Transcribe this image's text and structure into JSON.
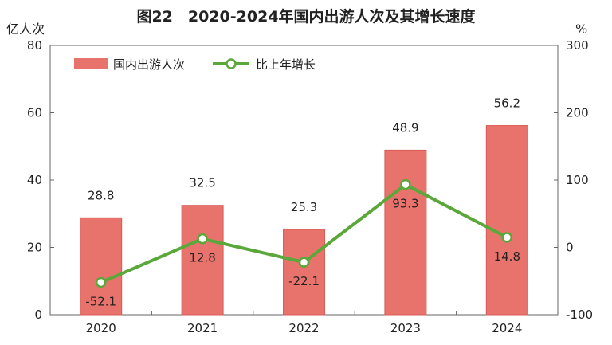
{
  "chart_data": {
    "type": "bar",
    "title": "图22　2020-2024年国内出游人次及其增长速度",
    "y_left_unit": "亿人次",
    "y_right_unit": "%",
    "categories": [
      "2020",
      "2021",
      "2022",
      "2023",
      "2024"
    ],
    "y_left_ticks": [
      "0",
      "20",
      "40",
      "60",
      "80"
    ],
    "y_right_ticks": [
      "-100",
      "0",
      "100",
      "200",
      "300"
    ],
    "y_left_lim": [
      0,
      80
    ],
    "y_right_lim": [
      -100,
      300
    ],
    "series": [
      {
        "name": "国内出游人次",
        "type": "bar",
        "axis": "left",
        "color": "#e8736c",
        "values": [
          28.8,
          32.5,
          25.3,
          48.9,
          56.2
        ],
        "labels": [
          "28.8",
          "32.5",
          "25.3",
          "48.9",
          "56.2"
        ]
      },
      {
        "name": "比上年增长",
        "type": "line",
        "axis": "right",
        "color": "#5aa83a",
        "values": [
          -52.1,
          12.8,
          -22.1,
          93.3,
          14.8
        ],
        "labels": [
          "-52.1",
          "12.8",
          "-22.1",
          "93.3",
          "14.8"
        ]
      }
    ],
    "legend_position": "top-left",
    "grid": false
  }
}
